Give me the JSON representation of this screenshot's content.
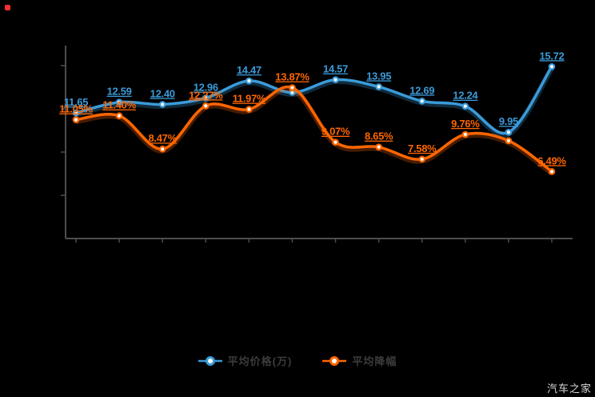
{
  "watermark": {
    "text": "汽车之家"
  },
  "indicator": {
    "color": "#f53030"
  },
  "legend": {
    "items": [
      {
        "label": "平均价格(万)",
        "color": "#3b9bd9"
      },
      {
        "label": "平均降幅",
        "color": "#ff6600"
      }
    ]
  },
  "chart_data": {
    "type": "line",
    "smoothing": true,
    "grid": false,
    "background": "#000000",
    "axis": {
      "color": "#4d4d4d",
      "tick_labels_visible": false
    },
    "legend_position": "bottom-center",
    "x_point_count": 12,
    "series": [
      {
        "name": "平均价格(万)",
        "color": "#3b9bd9",
        "unit": "万",
        "points": [
          {
            "value": 11.65,
            "label": "11.65"
          },
          {
            "value": 12.59,
            "label": "12.59"
          },
          {
            "value": 12.4,
            "label": "12.40"
          },
          {
            "value": 12.96,
            "label": "12.96"
          },
          {
            "value": 14.47,
            "label": "14.47"
          },
          {
            "value": 13.45,
            "label": ""
          },
          {
            "value": 14.57,
            "label": "14.57"
          },
          {
            "value": 13.95,
            "label": "13.95"
          },
          {
            "value": 12.69,
            "label": "12.69"
          },
          {
            "value": 12.24,
            "label": "12.24"
          },
          {
            "value": 9.95,
            "label": "9.95"
          },
          {
            "value": 15.72,
            "label": "15.72"
          }
        ]
      },
      {
        "name": "平均降幅",
        "color": "#ff6600",
        "unit": "%",
        "points": [
          {
            "value": 11.05,
            "label": "11.05%"
          },
          {
            "value": 11.4,
            "label": "11.40%"
          },
          {
            "value": 8.47,
            "label": "8.47%"
          },
          {
            "value": 12.27,
            "label": "12.27%"
          },
          {
            "value": 11.97,
            "label": "11.97%"
          },
          {
            "value": 13.87,
            "label": "13.87%"
          },
          {
            "value": 9.07,
            "label": "9.07%"
          },
          {
            "value": 8.65,
            "label": "8.65%"
          },
          {
            "value": 7.58,
            "label": "7.58%"
          },
          {
            "value": 9.76,
            "label": "9.76%"
          },
          {
            "value": 9.2,
            "label": ""
          },
          {
            "value": 6.49,
            "label": "6.49%"
          }
        ]
      }
    ]
  }
}
